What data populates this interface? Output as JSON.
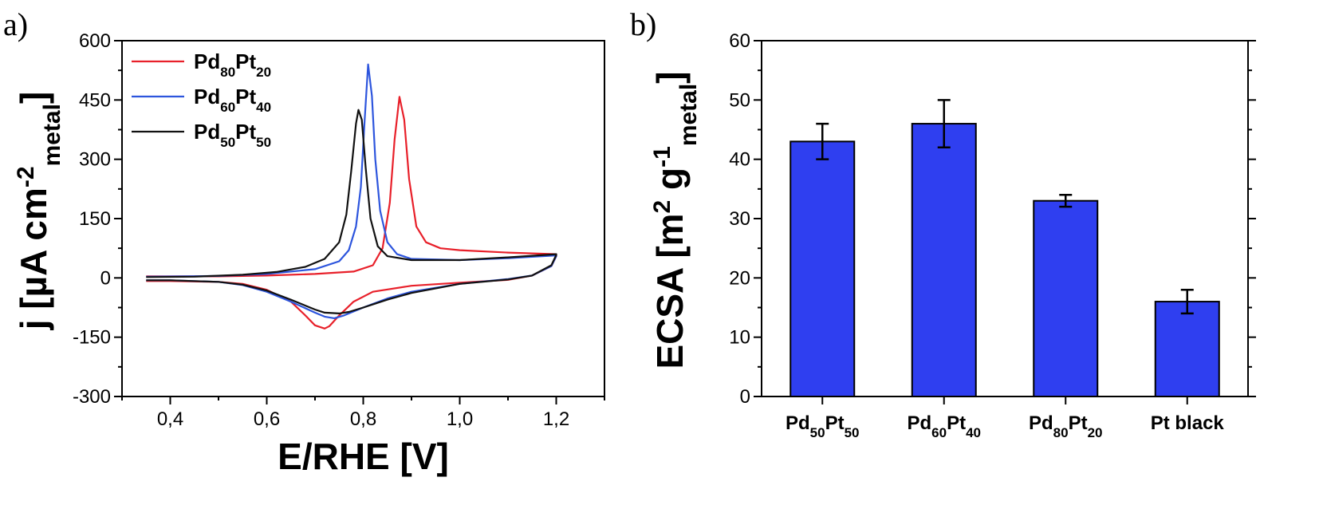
{
  "panel_a_label": "a)",
  "panel_b_label": "b)",
  "chart_data": [
    {
      "type": "line",
      "title": "",
      "xlabel": "E/RHE [V]",
      "ylabel": "j [µA cm-2metal]",
      "ylabel_parts": {
        "main": "j [µA cm",
        "sup": "-2",
        "sub": "metal",
        "close": "]"
      },
      "xlim": [
        0.3,
        1.3
      ],
      "ylim": [
        -300,
        600
      ],
      "xticks": [
        0.4,
        0.6,
        0.8,
        1.0,
        1.2
      ],
      "xtick_labels": [
        "0,4",
        "0,6",
        "0,8",
        "1,0",
        "1,2"
      ],
      "yticks": [
        -300,
        -150,
        0,
        150,
        300,
        450,
        600
      ],
      "ytick_labels": [
        "-300",
        "-150",
        "0",
        "150",
        "300",
        "450",
        "600"
      ],
      "legend_position": "top-left",
      "series": [
        {
          "name": "Pd80Pt20",
          "label_parts": [
            "Pd",
            "80",
            "Pt",
            "20"
          ],
          "color": "#e8202a",
          "anodic": [
            [
              0.35,
              4
            ],
            [
              0.5,
              4
            ],
            [
              0.6,
              6
            ],
            [
              0.7,
              10
            ],
            [
              0.78,
              16
            ],
            [
              0.82,
              32
            ],
            [
              0.84,
              75
            ],
            [
              0.855,
              190
            ],
            [
              0.865,
              350
            ],
            [
              0.875,
              458
            ],
            [
              0.885,
              400
            ],
            [
              0.895,
              250
            ],
            [
              0.91,
              130
            ],
            [
              0.93,
              90
            ],
            [
              0.96,
              75
            ],
            [
              1.0,
              70
            ],
            [
              1.1,
              64
            ],
            [
              1.2,
              60
            ]
          ],
          "cathodic": [
            [
              1.2,
              55
            ],
            [
              1.19,
              30
            ],
            [
              1.15,
              6
            ],
            [
              1.1,
              -5
            ],
            [
              1.0,
              -12
            ],
            [
              0.9,
              -20
            ],
            [
              0.82,
              -35
            ],
            [
              0.78,
              -60
            ],
            [
              0.75,
              -95
            ],
            [
              0.73,
              -122
            ],
            [
              0.72,
              -128
            ],
            [
              0.7,
              -120
            ],
            [
              0.68,
              -95
            ],
            [
              0.65,
              -60
            ],
            [
              0.6,
              -30
            ],
            [
              0.55,
              -15
            ],
            [
              0.5,
              -10
            ],
            [
              0.4,
              -8
            ],
            [
              0.35,
              -8
            ]
          ]
        },
        {
          "name": "Pd60Pt40",
          "label_parts": [
            "Pd",
            "60",
            "Pt",
            "40"
          ],
          "color": "#2d55dd",
          "anodic": [
            [
              0.35,
              3
            ],
            [
              0.5,
              5
            ],
            [
              0.6,
              10
            ],
            [
              0.7,
              22
            ],
            [
              0.75,
              42
            ],
            [
              0.77,
              70
            ],
            [
              0.785,
              130
            ],
            [
              0.795,
              230
            ],
            [
              0.803,
              400
            ],
            [
              0.81,
              540
            ],
            [
              0.818,
              460
            ],
            [
              0.825,
              300
            ],
            [
              0.835,
              170
            ],
            [
              0.85,
              90
            ],
            [
              0.87,
              60
            ],
            [
              0.9,
              48
            ],
            [
              1.0,
              45
            ],
            [
              1.1,
              50
            ],
            [
              1.2,
              57
            ]
          ],
          "cathodic": [
            [
              1.2,
              55
            ],
            [
              1.19,
              30
            ],
            [
              1.15,
              6
            ],
            [
              1.1,
              -3
            ],
            [
              1.0,
              -15
            ],
            [
              0.9,
              -35
            ],
            [
              0.85,
              -52
            ],
            [
              0.8,
              -75
            ],
            [
              0.76,
              -95
            ],
            [
              0.74,
              -102
            ],
            [
              0.72,
              -98
            ],
            [
              0.7,
              -88
            ],
            [
              0.65,
              -60
            ],
            [
              0.6,
              -35
            ],
            [
              0.55,
              -18
            ],
            [
              0.5,
              -10
            ],
            [
              0.4,
              -6
            ],
            [
              0.35,
              -6
            ]
          ]
        },
        {
          "name": "Pd50Pt50",
          "label_parts": [
            "Pd",
            "50",
            "Pt",
            "50"
          ],
          "color": "#111111",
          "anodic": [
            [
              0.35,
              2
            ],
            [
              0.45,
              3
            ],
            [
              0.55,
              8
            ],
            [
              0.62,
              15
            ],
            [
              0.68,
              28
            ],
            [
              0.72,
              48
            ],
            [
              0.75,
              90
            ],
            [
              0.765,
              160
            ],
            [
              0.775,
              270
            ],
            [
              0.785,
              390
            ],
            [
              0.79,
              425
            ],
            [
              0.797,
              400
            ],
            [
              0.805,
              280
            ],
            [
              0.815,
              150
            ],
            [
              0.83,
              80
            ],
            [
              0.85,
              55
            ],
            [
              0.9,
              45
            ],
            [
              1.0,
              45
            ],
            [
              1.1,
              52
            ],
            [
              1.2,
              60
            ]
          ],
          "cathodic": [
            [
              1.2,
              58
            ],
            [
              1.19,
              32
            ],
            [
              1.15,
              6
            ],
            [
              1.1,
              -4
            ],
            [
              1.0,
              -15
            ],
            [
              0.9,
              -38
            ],
            [
              0.85,
              -55
            ],
            [
              0.8,
              -75
            ],
            [
              0.77,
              -86
            ],
            [
              0.75,
              -90
            ],
            [
              0.72,
              -88
            ],
            [
              0.7,
              -80
            ],
            [
              0.65,
              -55
            ],
            [
              0.6,
              -32
            ],
            [
              0.55,
              -17
            ],
            [
              0.5,
              -10
            ],
            [
              0.4,
              -6
            ],
            [
              0.35,
              -6
            ]
          ]
        }
      ]
    },
    {
      "type": "bar",
      "title": "",
      "xlabel": "",
      "ylabel": "ECSA [m2 g-1metal]",
      "ylabel_parts": {
        "main": "ECSA [m",
        "sup1": "2",
        "g": " g",
        "sup2": "-1",
        "sub": "metal",
        "close": "]"
      },
      "ylim": [
        0,
        60
      ],
      "yticks": [
        0,
        10,
        20,
        30,
        40,
        50,
        60
      ],
      "ytick_labels": [
        "0",
        "10",
        "20",
        "30",
        "40",
        "50",
        "60"
      ],
      "categories": [
        "Pd50Pt50",
        "Pd60Pt40",
        "Pd80Pt20",
        "Pt black"
      ],
      "category_parts": [
        [
          "Pd",
          "50",
          "Pt",
          "50"
        ],
        [
          "Pd",
          "60",
          "Pt",
          "40"
        ],
        [
          "Pd",
          "80",
          "Pt",
          "20"
        ],
        [
          "Pt black"
        ]
      ],
      "values": [
        43,
        46,
        33,
        16
      ],
      "errors": [
        3,
        4,
        1,
        2
      ],
      "bar_color": "#2f3ff0"
    }
  ]
}
